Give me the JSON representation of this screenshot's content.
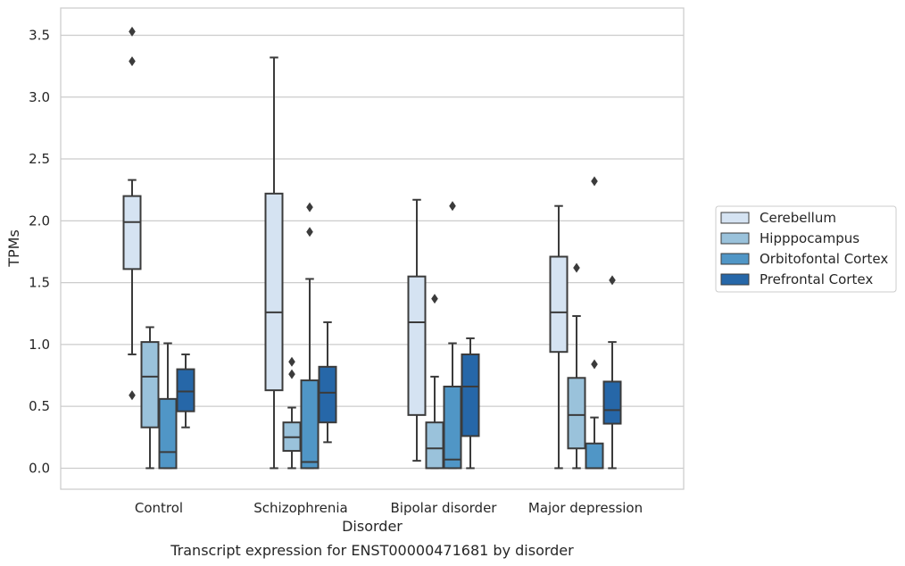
{
  "caption": "Transcript expression for ENST00000471681 by disorder",
  "chart_data": {
    "type": "boxplot",
    "xlabel": "Disorder",
    "ylabel": "TPMs",
    "ylim": [
      -0.17,
      3.72
    ],
    "yticks": [
      0.0,
      0.5,
      1.0,
      1.5,
      2.0,
      2.5,
      3.0,
      3.5
    ],
    "ytick_labels": [
      "0.0",
      "0.5",
      "1.0",
      "1.5",
      "2.0",
      "2.5",
      "3.0",
      "3.5"
    ],
    "grid": "horizontal",
    "legend_position": "right",
    "categories": [
      "Control",
      "Schizophrenia",
      "Bipolar disorder",
      "Major depression"
    ],
    "series": [
      {
        "name": "Cerebellum",
        "color": "#d5e3f2",
        "boxes": [
          {
            "whisker_low": 0.92,
            "q1": 1.61,
            "median": 1.99,
            "q3": 2.2,
            "whisker_high": 2.33,
            "outliers": [
              0.59,
              3.29,
              3.53
            ]
          },
          {
            "whisker_low": 0.0,
            "q1": 0.63,
            "median": 1.26,
            "q3": 2.22,
            "whisker_high": 3.32,
            "outliers": []
          },
          {
            "whisker_low": 0.06,
            "q1": 0.43,
            "median": 1.18,
            "q3": 1.55,
            "whisker_high": 2.17,
            "outliers": []
          },
          {
            "whisker_low": 0.0,
            "q1": 0.94,
            "median": 1.26,
            "q3": 1.71,
            "whisker_high": 2.12,
            "outliers": []
          }
        ]
      },
      {
        "name": "Hipppocampus",
        "color": "#9ac2db",
        "boxes": [
          {
            "whisker_low": 0.0,
            "q1": 0.33,
            "median": 0.74,
            "q3": 1.02,
            "whisker_high": 1.14,
            "outliers": []
          },
          {
            "whisker_low": 0.0,
            "q1": 0.14,
            "median": 0.25,
            "q3": 0.37,
            "whisker_high": 0.49,
            "outliers": [
              0.76,
              0.86
            ]
          },
          {
            "whisker_low": 0.0,
            "q1": 0.0,
            "median": 0.16,
            "q3": 0.37,
            "whisker_high": 0.74,
            "outliers": [
              1.37
            ]
          },
          {
            "whisker_low": 0.0,
            "q1": 0.16,
            "median": 0.43,
            "q3": 0.73,
            "whisker_high": 1.23,
            "outliers": [
              1.62
            ]
          }
        ]
      },
      {
        "name": "Orbitofontal Cortex",
        "color": "#5096c6",
        "boxes": [
          {
            "whisker_low": 0.0,
            "q1": 0.0,
            "median": 0.13,
            "q3": 0.56,
            "whisker_high": 1.01,
            "outliers": []
          },
          {
            "whisker_low": 0.0,
            "q1": 0.0,
            "median": 0.05,
            "q3": 0.71,
            "whisker_high": 1.53,
            "outliers": [
              1.91,
              2.11
            ]
          },
          {
            "whisker_low": 0.0,
            "q1": 0.0,
            "median": 0.07,
            "q3": 0.66,
            "whisker_high": 1.01,
            "outliers": [
              2.12
            ]
          },
          {
            "whisker_low": 0.0,
            "q1": 0.0,
            "median": 0.0,
            "q3": 0.2,
            "whisker_high": 0.41,
            "outliers": [
              0.84,
              2.32
            ]
          }
        ]
      },
      {
        "name": "Prefrontal Cortex",
        "color": "#2667a8",
        "boxes": [
          {
            "whisker_low": 0.33,
            "q1": 0.46,
            "median": 0.62,
            "q3": 0.8,
            "whisker_high": 0.92,
            "outliers": []
          },
          {
            "whisker_low": 0.21,
            "q1": 0.37,
            "median": 0.61,
            "q3": 0.82,
            "whisker_high": 1.18,
            "outliers": []
          },
          {
            "whisker_low": 0.0,
            "q1": 0.26,
            "median": 0.66,
            "q3": 0.92,
            "whisker_high": 1.05,
            "outliers": []
          },
          {
            "whisker_low": 0.0,
            "q1": 0.36,
            "median": 0.47,
            "q3": 0.7,
            "whisker_high": 1.02,
            "outliers": [
              1.52
            ]
          }
        ]
      }
    ]
  }
}
